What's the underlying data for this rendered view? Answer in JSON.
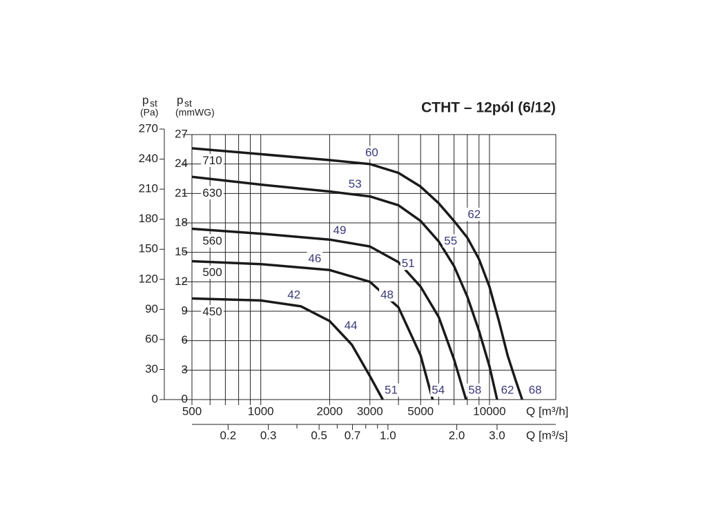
{
  "chart_data": {
    "type": "line",
    "title": "CTHT – 12pól (6/12)",
    "xscale": "log",
    "xlabel": "Q [m³/h]",
    "x2label": "Q [m³/s]",
    "ylabel": {
      "symbol": "p",
      "subscript": "st",
      "unit": "(mmWG)"
    },
    "y2label": {
      "symbol": "p",
      "subscript": "st",
      "unit": "(Pa)"
    },
    "xlim": [
      500,
      19500
    ],
    "xticks": [
      500,
      1000,
      2000,
      3000,
      5000,
      10000
    ],
    "xminor": [
      600,
      700,
      800,
      900,
      4000,
      6000,
      7000,
      8000,
      9000
    ],
    "x2lim": [
      0.139,
      5.42
    ],
    "x2ticks": [
      0.2,
      0.3,
      0.5,
      0.7,
      {
        "value": 1,
        "label": "1.0"
      },
      {
        "value": 2,
        "label": "2.0"
      },
      {
        "value": 3,
        "label": "3.0"
      }
    ],
    "x2minor": [
      0.4,
      0.6,
      0.8,
      0.9
    ],
    "ylim": [
      0,
      27
    ],
    "yticks": [
      0,
      3,
      6,
      9,
      12,
      15,
      18,
      21,
      24,
      27
    ],
    "y2lim": [
      0,
      270
    ],
    "y2ticks": [
      0,
      30,
      60,
      90,
      120,
      150,
      180,
      210,
      240,
      270
    ],
    "grid": true,
    "color": "#1a1a1a",
    "label_color": "#3b3a78",
    "series": [
      {
        "name": "710",
        "label_at": {
          "x": 614,
          "y": 24.3
        },
        "x": [
          500,
          1000,
          2000,
          3000,
          4000,
          5000,
          6000,
          7000,
          8000,
          9000,
          10000,
          11000,
          12000,
          13000,
          13900
        ],
        "values": [
          25.6,
          25.0,
          24.4,
          24.0,
          23.1,
          21.7,
          20.0,
          18.2,
          16.5,
          14.3,
          11.5,
          8.0,
          4.5,
          2.0,
          0
        ],
        "labels": [
          {
            "text": "60",
            "x": 3056,
            "y": 25.1
          },
          {
            "text": "62",
            "x": 8575,
            "y": 18.8
          },
          {
            "text": "68",
            "x": 15850,
            "y": 0.9
          }
        ]
      },
      {
        "name": "630",
        "label_at": {
          "x": 614,
          "y": 21.0
        },
        "x": [
          500,
          1000,
          2000,
          3000,
          4000,
          5000,
          6000,
          7000,
          8000,
          9000,
          10000,
          10800
        ],
        "values": [
          22.7,
          21.9,
          21.2,
          20.7,
          19.8,
          18.2,
          16.1,
          13.6,
          10.5,
          7.0,
          3.4,
          0
        ],
        "labels": [
          {
            "text": "53",
            "x": 2583,
            "y": 21.9
          },
          {
            "text": "55",
            "x": 6765,
            "y": 16.1
          },
          {
            "text": "62",
            "x": 11990,
            "y": 0.9
          }
        ]
      },
      {
        "name": "560",
        "label_at": {
          "x": 614,
          "y": 16.1
        },
        "x": [
          500,
          1000,
          2000,
          3000,
          4000,
          5000,
          6000,
          7000,
          7900
        ],
        "values": [
          17.4,
          16.9,
          16.3,
          15.6,
          14.0,
          11.5,
          8.4,
          4.1,
          0
        ],
        "labels": [
          {
            "text": "49",
            "x": 2213,
            "y": 17.2
          },
          {
            "text": "51",
            "x": 4413,
            "y": 13.8
          },
          {
            "text": "58",
            "x": 8630,
            "y": 0.9
          }
        ]
      },
      {
        "name": "500",
        "label_at": {
          "x": 614,
          "y": 12.9
        },
        "x": [
          500,
          1000,
          2000,
          3000,
          4000,
          5000,
          5640
        ],
        "values": [
          14.1,
          13.8,
          13.2,
          12.0,
          9.4,
          4.5,
          0
        ],
        "labels": [
          {
            "text": "46",
            "x": 1722,
            "y": 14.3
          },
          {
            "text": "48",
            "x": 3564,
            "y": 10.6
          },
          {
            "text": "54",
            "x": 5970,
            "y": 0.9
          }
        ]
      },
      {
        "name": "450",
        "label_at": {
          "x": 614,
          "y": 8.9
        },
        "x": [
          500,
          1000,
          1500,
          2000,
          2500,
          3000,
          3415
        ],
        "values": [
          10.3,
          10.1,
          9.5,
          8.0,
          5.6,
          2.4,
          0
        ],
        "labels": [
          {
            "text": "42",
            "x": 1397,
            "y": 10.6
          },
          {
            "text": "44",
            "x": 2477,
            "y": 7.5
          },
          {
            "text": "51",
            "x": 3715,
            "y": 0.9
          }
        ]
      }
    ]
  }
}
